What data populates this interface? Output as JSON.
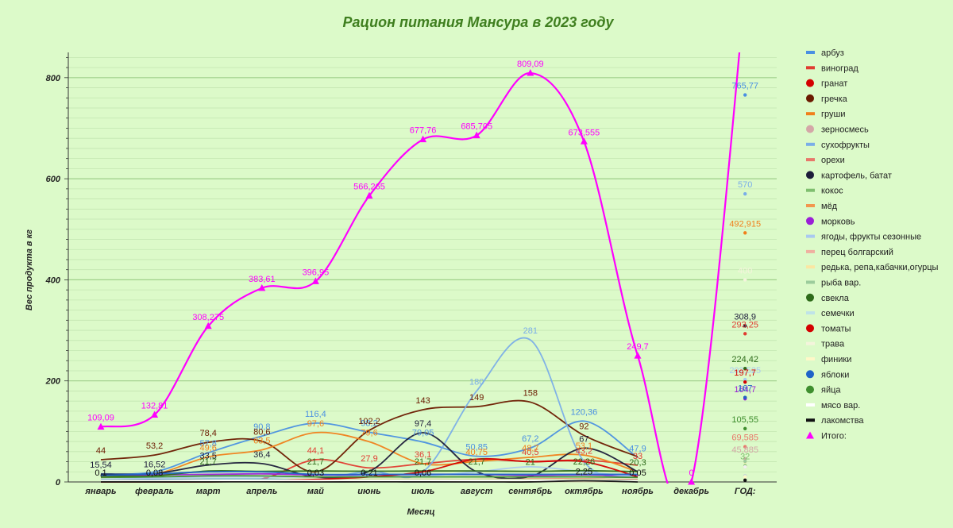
{
  "chart_data": {
    "type": "line",
    "title": "Рацион питания Мансура в 2023 году",
    "xlabel": "Месяц",
    "ylabel": "Вес продукта в кг",
    "ylim": [
      0,
      850
    ],
    "yticks": [
      0,
      200,
      400,
      600,
      800
    ],
    "categories": [
      "январь",
      "февраль",
      "март",
      "апрель",
      "май",
      "июнь",
      "июль",
      "август",
      "сентябрь",
      "октябрь",
      "ноябрь",
      "декабрь",
      "ГОД:"
    ],
    "legend_position": "right",
    "grid": true,
    "series": [
      {
        "name": "арбуз",
        "color": "#4a90e2",
        "marker": "bar",
        "values": [
          16,
          20,
          57.8,
          90.8,
          116.4,
          98.2,
          79.05,
          50.85,
          67.2,
          120.36,
          47.9,
          null,
          765.77
        ],
        "labels": [
          null,
          null,
          "57,8",
          "90,8",
          "116,4",
          "98,2",
          "79,05",
          "50,85",
          "67,2",
          "120,36",
          "47,9",
          null,
          "765,77"
        ]
      },
      {
        "name": "виноград",
        "color": "#e03c31",
        "marker": "bar",
        "values": [
          0,
          2,
          4,
          6,
          44.1,
          27.9,
          36.1,
          45,
          40.5,
          43.2,
          33,
          null,
          293.25
        ],
        "labels": [
          null,
          null,
          null,
          null,
          "44,1",
          "27,9",
          "36,1",
          null,
          "40,5",
          "43,2",
          "33",
          null,
          "293,25"
        ]
      },
      {
        "name": "гранат",
        "color": "#d40000",
        "marker": "dot",
        "values": [
          null,
          null,
          null,
          null,
          null,
          null,
          null,
          null,
          null,
          null,
          null,
          null,
          null
        ],
        "labels": []
      },
      {
        "name": "гречка",
        "color": "#6b1a00",
        "marker": "dot",
        "values": [
          44,
          53.2,
          78.4,
          80.6,
          20,
          102.2,
          143,
          149,
          158,
          92,
          50,
          null,
          167
        ],
        "labels": [
          "44",
          "53,2",
          "78,4",
          "80,6",
          null,
          "102,2",
          "143",
          "149",
          "158",
          "92",
          null,
          null,
          null
        ]
      },
      {
        "name": "груши",
        "color": "#f07f1b",
        "marker": "bar",
        "values": [
          10,
          15,
          49.6,
          63.5,
          97.6,
          79.6,
          36,
          40.75,
          48.7,
          53.1,
          20,
          null,
          492.915
        ],
        "labels": [
          null,
          null,
          "49,6",
          "63,5",
          "97,6",
          "79,6",
          null,
          "40,75",
          "48,7",
          "53,1",
          null,
          null,
          "492,915"
        ]
      },
      {
        "name": "зерносмесь",
        "color": "#d4a7a7",
        "marker": "dot",
        "values": [
          5,
          5,
          5,
          5,
          5,
          5,
          5,
          5,
          5,
          5,
          5,
          null,
          45.885
        ],
        "labels": [
          null,
          null,
          null,
          null,
          null,
          null,
          null,
          null,
          null,
          null,
          null,
          null,
          "45,885"
        ]
      },
      {
        "name": "сухофрукты",
        "color": "#7aaee8",
        "marker": "bar",
        "values": [
          5,
          5,
          6,
          6,
          5,
          21,
          20,
          180,
          281,
          40,
          10,
          null,
          570
        ],
        "labels": [
          null,
          null,
          null,
          null,
          null,
          null,
          null,
          "180",
          "281",
          null,
          null,
          null,
          "570"
        ]
      },
      {
        "name": "орехи",
        "color": "#e8786a",
        "marker": "bar",
        "values": [
          3,
          3,
          4,
          4,
          3,
          5,
          5,
          5,
          6,
          6,
          4,
          null,
          69.585
        ],
        "labels": [
          null,
          null,
          null,
          null,
          null,
          null,
          null,
          null,
          null,
          null,
          null,
          null,
          "69,585"
        ]
      },
      {
        "name": "картофель, батат",
        "color": "#1c1c3a",
        "marker": "dot",
        "values": [
          15.54,
          16.52,
          33.5,
          36.4,
          10,
          21,
          97.4,
          20,
          11,
          67,
          20.3,
          null,
          308.9
        ],
        "labels": [
          "15,54",
          "16,52",
          "33,5",
          "36,4",
          null,
          null,
          "97,4",
          null,
          null,
          "67",
          null,
          null,
          "308,9"
        ]
      },
      {
        "name": "кокос",
        "color": "#7fbf6f",
        "marker": "bar",
        "values": [
          2,
          2,
          2,
          2,
          2,
          2,
          2,
          2,
          2,
          2,
          2,
          null,
          32
        ],
        "labels": [
          null,
          null,
          null,
          null,
          null,
          null,
          null,
          null,
          null,
          null,
          null,
          null,
          "32"
        ]
      },
      {
        "name": "мёд",
        "color": "#f2964e",
        "marker": "bar",
        "values": [
          1,
          1,
          1,
          1,
          1,
          1,
          1,
          1,
          1,
          1,
          1,
          null,
          12
        ],
        "labels": []
      },
      {
        "name": "морковь",
        "color": "#9a1fd6",
        "marker": "dot",
        "values": [
          12,
          14,
          15,
          16,
          14,
          14,
          15,
          15,
          13,
          14,
          12,
          null,
          164.7
        ],
        "labels": [
          null,
          null,
          null,
          null,
          null,
          null,
          null,
          null,
          null,
          null,
          null,
          null,
          "164,7"
        ]
      },
      {
        "name": "ягоды, фрукты сезонные",
        "color": "#a9c9f0",
        "marker": "bar",
        "values": [
          5,
          8,
          10,
          10,
          10,
          12,
          12,
          20,
          30,
          20,
          10,
          null,
          202.525
        ],
        "labels": [
          null,
          null,
          null,
          null,
          null,
          null,
          null,
          null,
          null,
          null,
          null,
          null,
          "202,525"
        ]
      },
      {
        "name": "перец болгарский",
        "color": "#efb0a0",
        "marker": "bar",
        "values": [
          2,
          2,
          3,
          3,
          3,
          3,
          3,
          3,
          3,
          3,
          2,
          null,
          30
        ],
        "labels": []
      },
      {
        "name": "редька, репа,кабачки,огурцы",
        "color": "#fbe6a2",
        "marker": "bar",
        "values": [
          2,
          2,
          3,
          3,
          5,
          5,
          5,
          5,
          5,
          5,
          3,
          null,
          40
        ],
        "labels": []
      },
      {
        "name": "рыба вар.",
        "color": "#9ccc9c",
        "marker": "bar",
        "values": [
          3,
          3,
          4,
          4,
          4,
          4,
          4,
          4,
          4,
          4,
          3,
          null,
          41
        ],
        "labels": []
      },
      {
        "name": "свекла",
        "color": "#2e6b1a",
        "marker": "dot",
        "values": [
          12,
          12,
          21.7,
          21,
          21.7,
          21.2,
          21.7,
          21.7,
          21,
          22.26,
          20.3,
          null,
          224.42
        ],
        "labels": [
          null,
          null,
          "21,7",
          null,
          "21,7",
          null,
          "21,7",
          "21,7",
          "21",
          "22,26",
          "20,3",
          null,
          "224,42"
        ]
      },
      {
        "name": "семечки",
        "color": "#bfe3e8",
        "marker": "bar",
        "values": [
          1,
          1,
          1,
          1,
          1,
          1,
          1,
          1,
          1,
          1,
          1,
          null,
          12
        ],
        "labels": []
      },
      {
        "name": "томаты",
        "color": "#d40000",
        "marker": "dot",
        "values": [
          0,
          0,
          0,
          2,
          5,
          10,
          20,
          45,
          40,
          40,
          10,
          null,
          197.7
        ],
        "labels": [
          null,
          null,
          null,
          null,
          null,
          null,
          null,
          null,
          null,
          null,
          null,
          null,
          "197,7"
        ]
      },
      {
        "name": "трава",
        "color": "#f4f4dc",
        "marker": "bar",
        "values": [
          2,
          2,
          3,
          3,
          3,
          3,
          3,
          3,
          3,
          3,
          2,
          null,
          400
        ],
        "labels": [
          null,
          null,
          null,
          null,
          null,
          null,
          null,
          null,
          null,
          null,
          null,
          null,
          "400"
        ]
      },
      {
        "name": "финики",
        "color": "#fff8c8",
        "marker": "bar",
        "values": [
          1,
          1,
          1,
          1,
          1,
          1,
          1,
          1,
          1,
          1,
          1,
          null,
          10
        ],
        "labels": []
      },
      {
        "name": "яблоки",
        "color": "#1f63c8",
        "marker": "dot",
        "values": [
          13,
          16,
          20,
          20,
          15,
          15,
          15,
          15,
          15,
          15,
          15,
          null,
          167
        ],
        "labels": [
          null,
          null,
          null,
          null,
          null,
          null,
          null,
          null,
          null,
          null,
          null,
          null,
          "167"
        ]
      },
      {
        "name": "яйца",
        "color": "#3f8f2f",
        "marker": "dot",
        "values": [
          9,
          10,
          12,
          12,
          10,
          10,
          10,
          10,
          10,
          10,
          9,
          null,
          105.55
        ],
        "labels": [
          null,
          null,
          null,
          null,
          null,
          null,
          null,
          null,
          null,
          null,
          null,
          null,
          "105,55"
        ]
      },
      {
        "name": "мясо вар.",
        "color": "#ffffff",
        "marker": "bar",
        "values": [
          2,
          2,
          3,
          3,
          3,
          3,
          3,
          3,
          3,
          3,
          2,
          null,
          30
        ],
        "labels": []
      },
      {
        "name": "лакомства",
        "color": "#111111",
        "marker": "bar",
        "values": [
          0.1,
          0.08,
          0.1,
          0.2,
          0.03,
          0.21,
          0.06,
          0.05,
          0.1,
          2.25,
          0.05,
          null,
          3.5
        ],
        "labels": [
          "0,1",
          "0,08",
          null,
          null,
          "0,03",
          "0,21",
          "0,06",
          null,
          null,
          "2,25",
          "0,05",
          null,
          null
        ]
      },
      {
        "name": "Итого:",
        "color": "#ff00ff",
        "marker": "triangle",
        "values": [
          109.09,
          132.81,
          308.275,
          383.61,
          396.95,
          566.265,
          677.76,
          685.705,
          809.09,
          673.555,
          249.7,
          0,
          null
        ],
        "labels": [
          "109,09",
          "132,81",
          "308,275",
          "383,61",
          "396,95",
          "566,265",
          "677,76",
          "685,705",
          "809,09",
          "673,555",
          "249,7",
          "0",
          null
        ]
      }
    ]
  }
}
